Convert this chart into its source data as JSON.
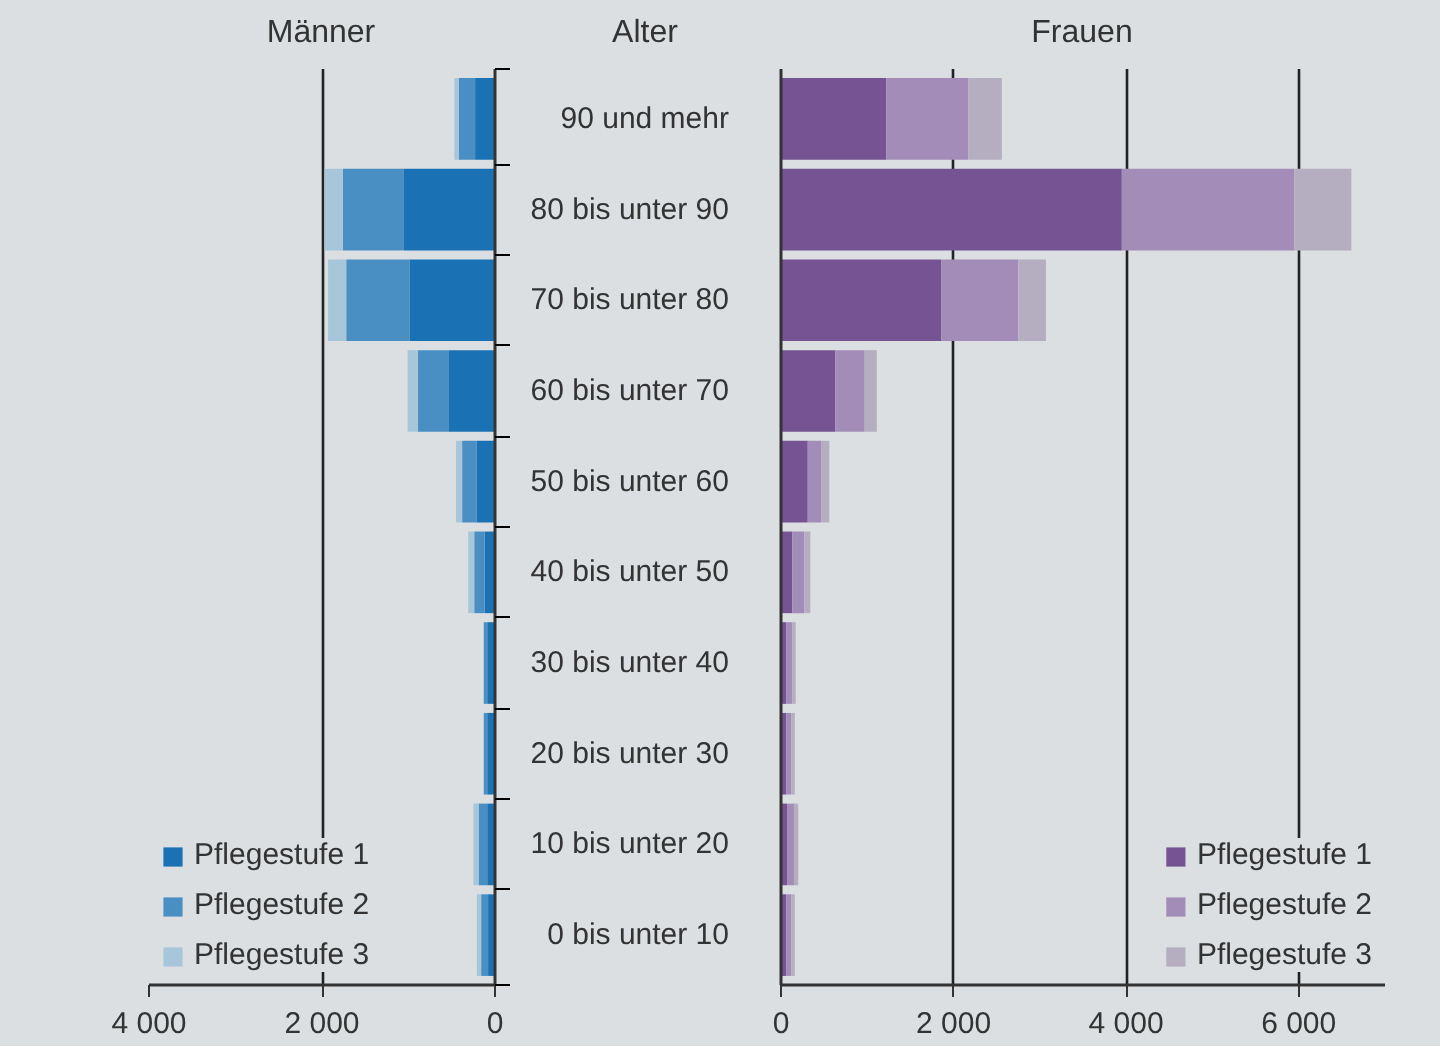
{
  "chart_data": [
    {
      "type": "bar",
      "orientation": "horizontal",
      "stacked": true,
      "title": "Männer",
      "categories": [
        null,
        null,
        null,
        null,
        null,
        null,
        null,
        null,
        null,
        null
      ],
      "series": [
        {
          "name": "Pflegestufe 1",
          "color": "#1a72b4",
          "values": [
            230,
            1060,
            990,
            540,
            210,
            120,
            90,
            90,
            90,
            80
          ]
        },
        {
          "name": "Pflegestufe 2",
          "color": "#4a8fc4",
          "values": [
            190,
            700,
            730,
            350,
            170,
            120,
            40,
            40,
            100,
            80
          ]
        },
        {
          "name": "Pflegestufe 3",
          "color": "#a8c6da",
          "values": [
            50,
            210,
            210,
            120,
            70,
            70,
            null,
            null,
            60,
            50
          ]
        }
      ],
      "xlim": [
        4000,
        0
      ],
      "xticks": [
        {
          "value": 4000,
          "label": "4 000"
        },
        {
          "value": 2000,
          "label": "2 000"
        },
        0
      ],
      "grid": "x",
      "legend": "bottom left"
    },
    {
      "type": "bar",
      "orientation": "horizontal",
      "stacked": true,
      "title": "Frauen",
      "ylabel": "Alter",
      "categories": [
        "90 und mehr",
        "80 bis unter 90",
        "70 bis unter 80",
        "60 bis unter 70",
        "50 bis unter 60",
        "40 bis unter 50",
        "30 bis unter 40",
        "20 bis unter 30",
        "10 bis unter 20",
        "0 bis unter 10"
      ],
      "series": [
        {
          "name": "Pflegestufe 1",
          "color": "#765393",
          "values": [
            1220,
            3950,
            1860,
            630,
            310,
            130,
            60,
            60,
            70,
            60
          ]
        },
        {
          "name": "Pflegestufe 2",
          "color": "#a38cb8",
          "values": [
            950,
            2000,
            890,
            340,
            160,
            140,
            70,
            60,
            80,
            60
          ]
        },
        {
          "name": "Pflegestufe 3",
          "color": "#b5adc0",
          "values": [
            390,
            660,
            320,
            140,
            90,
            70,
            40,
            40,
            50,
            40
          ]
        }
      ],
      "xlim": [
        0,
        7000
      ],
      "xticks": [
        0,
        {
          "value": 2000,
          "label": "2 000"
        },
        {
          "value": 4000,
          "label": "4 000"
        },
        {
          "value": 6000,
          "label": "6 000"
        }
      ],
      "grid": "x",
      "legend": "bottom right"
    }
  ]
}
